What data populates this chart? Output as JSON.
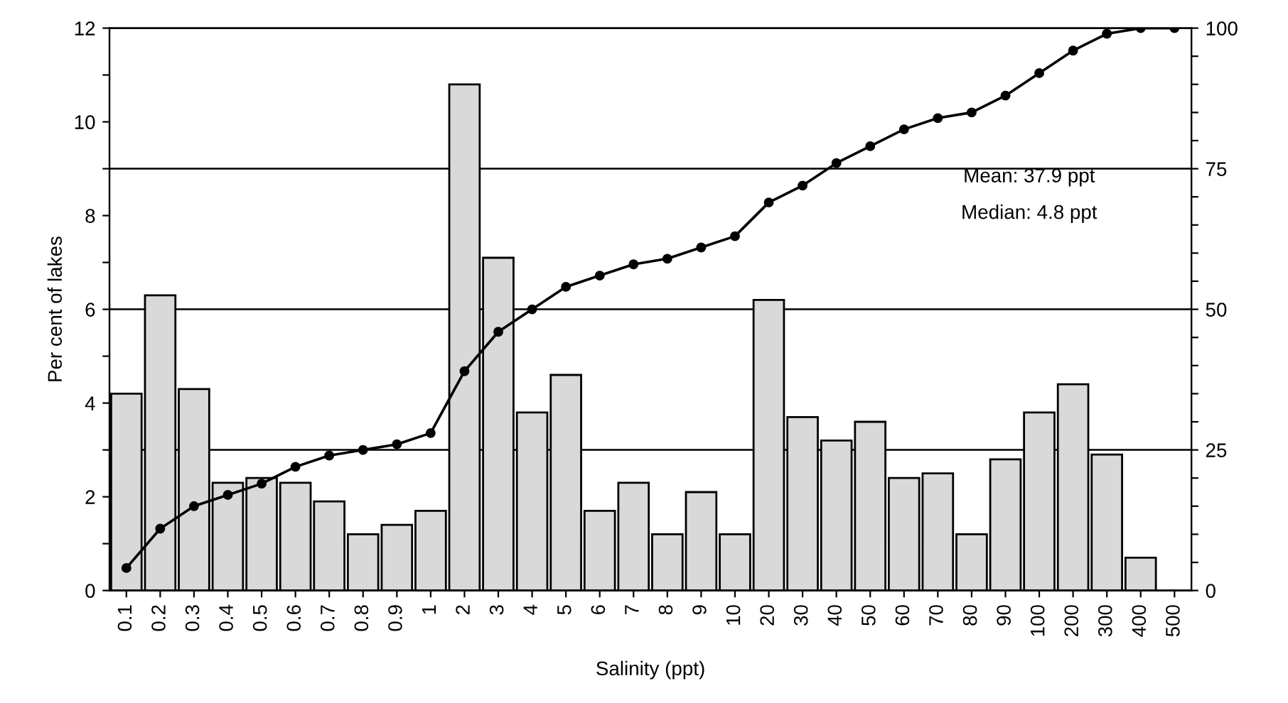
{
  "chart_data": {
    "type": "bar",
    "xlabel": "Salinity (ppt)",
    "ylabel": "Per cent of lakes",
    "categories": [
      "0.1",
      "0.2",
      "0.3",
      "0.4",
      "0.5",
      "0.6",
      "0.7",
      "0.8",
      "0.9",
      "1",
      "2",
      "3",
      "4",
      "5",
      "6",
      "7",
      "8",
      "9",
      "10",
      "20",
      "30",
      "40",
      "50",
      "60",
      "70",
      "80",
      "90",
      "100",
      "200",
      "300",
      "400",
      "500"
    ],
    "series": [
      {
        "color": "#d9d9d9",
        "values": [
          4.2,
          6.3,
          4.3,
          2.3,
          2.4,
          2.3,
          1.9,
          1.2,
          1.4,
          1.7,
          10.8,
          7.1,
          3.8,
          4.6,
          1.7,
          2.3,
          1.2,
          2.1,
          1.2,
          6.2,
          3.7,
          3.2,
          3.6,
          2.4,
          2.5,
          1.2,
          2.8,
          3.8,
          4.4,
          2.9,
          0.7,
          null
        ]
      },
      {
        "type": "line",
        "axis": "y2",
        "color": "#000000",
        "marker": "circle",
        "line_style": "solid",
        "values": [
          4,
          11,
          15,
          17,
          19,
          22,
          24,
          25,
          26,
          28,
          39,
          46,
          50,
          54,
          56,
          58,
          59,
          61,
          63,
          69,
          72,
          76,
          79,
          82,
          84,
          85,
          88,
          92,
          96,
          99,
          100,
          100
        ]
      }
    ],
    "ylim": [
      0,
      12
    ],
    "yticks": [
      0,
      {
        "value": 1,
        "label": null
      },
      2,
      {
        "value": 3,
        "label": null
      },
      4,
      {
        "value": 5,
        "label": null
      },
      6,
      {
        "value": 7,
        "label": null
      },
      8,
      {
        "value": 9,
        "label": null
      },
      10,
      {
        "value": 11,
        "label": null
      },
      12
    ],
    "y2lim": [
      0,
      100
    ],
    "y2ticks": [
      0,
      {
        "value": 5,
        "label": null
      },
      {
        "value": 10,
        "label": null
      },
      {
        "value": 15,
        "label": null
      },
      {
        "value": 20,
        "label": null
      },
      25,
      {
        "value": 30,
        "label": null
      },
      {
        "value": 35,
        "label": null
      },
      {
        "value": 40,
        "label": null
      },
      {
        "value": 45,
        "label": null
      },
      50,
      {
        "value": 55,
        "label": null
      },
      {
        "value": 60,
        "label": null
      },
      {
        "value": 65,
        "label": null
      },
      {
        "value": 70,
        "label": null
      },
      75,
      {
        "value": 80,
        "label": null
      },
      {
        "value": 85,
        "label": null
      },
      {
        "value": 90,
        "label": null
      },
      {
        "value": 95,
        "label": null
      },
      100
    ],
    "grid": "y2",
    "annotations": [
      "Mean: 37.9 ppt",
      "Median: 4.8 ppt"
    ]
  }
}
